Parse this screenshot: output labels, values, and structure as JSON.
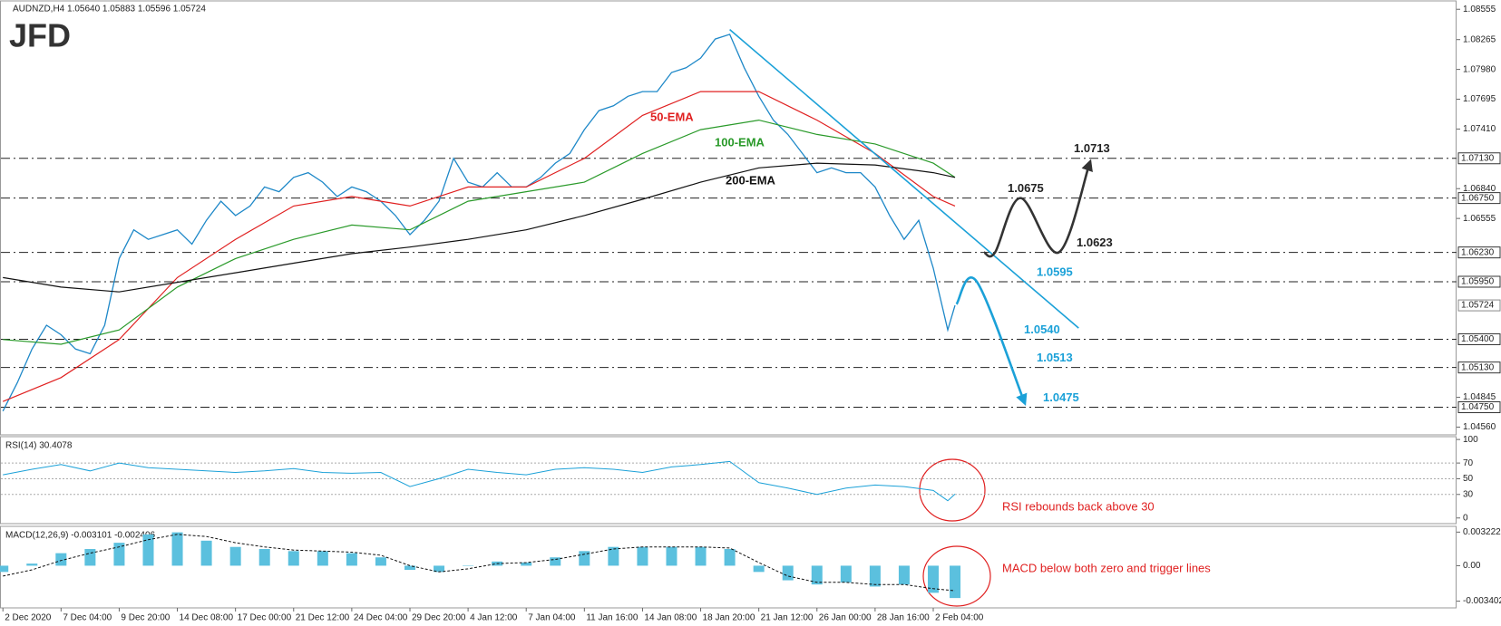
{
  "logo": "JFD",
  "chart_data": [
    {
      "type": "line",
      "title": "AUDNZD,H4 1.05640 1.05883 1.05596 1.05724",
      "xlim": [
        -0.8,
        400
      ],
      "xticks": [
        {
          "value": 0,
          "label": "2 Dec 2020"
        },
        {
          "value": 16,
          "label": "7 Dec 04:00"
        },
        {
          "value": 32,
          "label": "9 Dec 20:00"
        },
        {
          "value": 48,
          "label": "14 Dec 08:00"
        },
        {
          "value": 64,
          "label": "17 Dec 00:00"
        },
        {
          "value": 80,
          "label": "21 Dec 12:00"
        },
        {
          "value": 96,
          "label": "24 Dec 04:00"
        },
        {
          "value": 112,
          "label": "29 Dec 20:00"
        },
        {
          "value": 128,
          "label": "4 Jan 12:00"
        },
        {
          "value": 144,
          "label": "7 Jan 04:00"
        },
        {
          "value": 160,
          "label": "11 Jan 16:00"
        },
        {
          "value": 176,
          "label": "14 Jan 08:00"
        },
        {
          "value": 192,
          "label": "18 Jan 20:00"
        },
        {
          "value": 208,
          "label": "21 Jan 12:00"
        },
        {
          "value": 224,
          "label": "26 Jan 00:00"
        },
        {
          "value": 240,
          "label": "28 Jan 16:00"
        },
        {
          "value": 256,
          "label": "2 Feb 04:00"
        }
      ],
      "ylim": [
        1.04486,
        1.08635
      ],
      "yticks": [
        1.08555,
        1.08265,
        {
          "value": 1.0798,
          "label": "1.07980"
        },
        1.07695,
        {
          "value": 1.0741,
          "label": "1.07410"
        },
        {
          "value": 1.0684,
          "label": "1.06840"
        },
        1.06555,
        1.04845,
        {
          "value": 1.0456,
          "label": "1.04560"
        }
      ],
      "last_price": {
        "value": 1.05724,
        "label": "1.05724"
      },
      "levels": [
        {
          "value": 1.0713,
          "label": "1.0713",
          "axis_label": "1.07130",
          "color": "#222222"
        },
        {
          "value": 1.0675,
          "label": "1.0675",
          "axis_label": "1.06750",
          "color": "#222222"
        },
        {
          "value": 1.0623,
          "label": "1.0623",
          "axis_label": "1.06230",
          "color": "#222222"
        },
        {
          "value": 1.0595,
          "label": "1.0595",
          "axis_label": "1.05950",
          "color": "#1ba1d8"
        },
        {
          "value": 1.054,
          "label": "1.0540",
          "axis_label": "1.05400",
          "color": "#1ba1d8"
        },
        {
          "value": 1.0513,
          "label": "1.0513",
          "axis_label": "1.05130",
          "color": "#1ba1d8"
        },
        {
          "value": 1.0475,
          "label": "1.0475",
          "axis_label": "1.04750",
          "color": "#1ba1d8"
        }
      ],
      "series": [
        {
          "color": "#1e88c8",
          "x": [
            0,
            4,
            8,
            12,
            16,
            20,
            24,
            28,
            32,
            36,
            40,
            44,
            48,
            52,
            56,
            60,
            64,
            68,
            72,
            76,
            80,
            84,
            88,
            92,
            96,
            100,
            104,
            108,
            112,
            116,
            120,
            124,
            128,
            132,
            136,
            140,
            144,
            148,
            152,
            156,
            160,
            164,
            168,
            172,
            176,
            180,
            184,
            188,
            192,
            196,
            200,
            204,
            208,
            212,
            216,
            220,
            224,
            228,
            232,
            236,
            240,
            244,
            248,
            252,
            256,
            260,
            262
          ],
          "values": [
            1.04713,
            1.04987,
            1.05306,
            1.05534,
            1.05443,
            1.05306,
            1.05261,
            1.05534,
            1.06172,
            1.06446,
            1.06355,
            1.064,
            1.06446,
            1.06309,
            1.06537,
            1.0672,
            1.06583,
            1.06674,
            1.06856,
            1.06811,
            1.06948,
            1.06993,
            1.06902,
            1.06765,
            1.06856,
            1.06811,
            1.0672,
            1.06583,
            1.064,
            1.06537,
            1.0672,
            1.0713,
            1.06902,
            1.06856,
            1.06993,
            1.06856,
            1.06856,
            1.06948,
            1.07084,
            1.07176,
            1.07404,
            1.07586,
            1.07632,
            1.07723,
            1.07768,
            1.07768,
            1.07951,
            1.07996,
            1.08088,
            1.0827,
            1.08315,
            1.07996,
            1.07723,
            1.07495,
            1.07358,
            1.07176,
            1.06993,
            1.07039,
            1.06993,
            1.06993,
            1.06856,
            1.06583,
            1.06355,
            1.06537,
            1.06081,
            1.05489,
            1.05724
          ]
        },
        {
          "name": "50-EMA",
          "color": "#e02020",
          "x": [
            0,
            16,
            32,
            48,
            64,
            80,
            96,
            112,
            128,
            144,
            160,
            176,
            192,
            208,
            224,
            240,
            256,
            262
          ],
          "values": [
            1.04805,
            1.05033,
            1.05397,
            1.0599,
            1.06355,
            1.06674,
            1.06765,
            1.06674,
            1.06856,
            1.06856,
            1.0713,
            1.0754,
            1.07768,
            1.07768,
            1.07495,
            1.07176,
            1.06765,
            1.06674
          ]
        },
        {
          "name": "100-EMA",
          "color": "#2a9a2a",
          "x": [
            0,
            16,
            32,
            48,
            64,
            80,
            96,
            112,
            128,
            144,
            160,
            176,
            192,
            208,
            224,
            240,
            256,
            262
          ],
          "values": [
            1.05397,
            1.05352,
            1.05489,
            1.05899,
            1.06172,
            1.06355,
            1.06492,
            1.06446,
            1.0672,
            1.06811,
            1.06902,
            1.07176,
            1.07404,
            1.07495,
            1.07358,
            1.07267,
            1.07084,
            1.06948
          ]
        },
        {
          "name": "200-EMA",
          "color": "#111111",
          "x": [
            0,
            16,
            32,
            48,
            64,
            80,
            96,
            112,
            128,
            144,
            160,
            176,
            192,
            208,
            224,
            240,
            256,
            262
          ],
          "values": [
            1.0599,
            1.05899,
            1.05853,
            1.05945,
            1.06036,
            1.06127,
            1.06218,
            1.06282,
            1.06355,
            1.06446,
            1.06583,
            1.06738,
            1.06902,
            1.07039,
            1.07084,
            1.07066,
            1.06993,
            1.06948
          ]
        }
      ],
      "trendline": {
        "color": "#1ba1d8",
        "x": [
          200,
          296
        ],
        "values": [
          1.08361,
          1.05507
        ]
      },
      "scenarios": [
        {
          "color": "#333333",
          "x": [
            270,
            273,
            280,
            290.5,
            299
          ],
          "values": [
            1.0623,
            1.0623,
            1.0675,
            1.0623,
            1.0708
          ]
        },
        {
          "color": "#1ba1d8",
          "x": [
            262.4,
            268,
            281
          ],
          "values": [
            1.05735,
            1.0595,
            1.04805
          ]
        }
      ]
    },
    {
      "type": "line",
      "title": "RSI(14) 30.4078",
      "color": "#1ba1d8",
      "x": [
        0,
        8,
        16,
        24,
        32,
        40,
        48,
        56,
        64,
        72,
        80,
        88,
        96,
        104,
        112,
        120,
        128,
        136,
        144,
        152,
        160,
        168,
        176,
        184,
        192,
        200,
        208,
        216,
        224,
        232,
        240,
        248,
        256,
        260,
        262
      ],
      "values": [
        55,
        62,
        68,
        60,
        70,
        64,
        62,
        60,
        58,
        60,
        63,
        58,
        57,
        58,
        40,
        50,
        62,
        58,
        55,
        62,
        64,
        62,
        58,
        65,
        68,
        72,
        45,
        38,
        30,
        38,
        42,
        40,
        35,
        22,
        30.4078
      ],
      "ylim": [
        -7.2,
        103.6
      ],
      "yticks": [
        100,
        70,
        50,
        30,
        0
      ],
      "hlines": [
        70,
        50,
        30
      ],
      "annotation": {
        "text": "RSI rebounds back above 30",
        "color": "#e02020"
      }
    },
    {
      "type": "macd",
      "title": "MACD(12,26,9) -0.003101 -0.002406",
      "color": "#5bc0de",
      "signal_color": "#111111",
      "x": [
        0,
        8,
        16,
        24,
        32,
        40,
        48,
        56,
        64,
        72,
        80,
        88,
        96,
        104,
        112,
        120,
        128,
        136,
        144,
        152,
        160,
        168,
        176,
        184,
        192,
        200,
        208,
        216,
        224,
        232,
        240,
        248,
        256,
        262
      ],
      "values": [
        -0.0006,
        0.0002,
        0.0012,
        0.0016,
        0.0022,
        0.003,
        0.0032,
        0.0024,
        0.0018,
        0.0016,
        0.0014,
        0.0014,
        0.0012,
        0.0008,
        -0.0004,
        -0.0006,
        0,
        0.0004,
        0.0003,
        0.0008,
        0.0014,
        0.0018,
        0.0018,
        0.0018,
        0.0018,
        0.0016,
        -0.0006,
        -0.0014,
        -0.0018,
        -0.0016,
        -0.002,
        -0.0018,
        -0.0026,
        -0.003101
      ],
      "signal": [
        -0.001,
        -0.0004,
        0.0005,
        0.0012,
        0.0018,
        0.0025,
        0.003,
        0.0028,
        0.0022,
        0.0018,
        0.0015,
        0.0014,
        0.0013,
        0.001,
        0,
        -0.0006,
        -0.0003,
        0.0002,
        0.0003,
        0.0006,
        0.0011,
        0.0016,
        0.0018,
        0.0018,
        0.0018,
        0.0017,
        0.0003,
        -0.001,
        -0.0016,
        -0.0016,
        -0.0018,
        -0.0018,
        -0.0022,
        -0.002406
      ],
      "ylim": [
        -0.004046,
        0.003774
      ],
      "yticks": [
        0.003222,
        {
          "value": 0,
          "label": "0.00"
        },
        -0.003402
      ],
      "annotation": {
        "text": "MACD below both zero and trigger lines",
        "color": "#e02020"
      }
    }
  ]
}
